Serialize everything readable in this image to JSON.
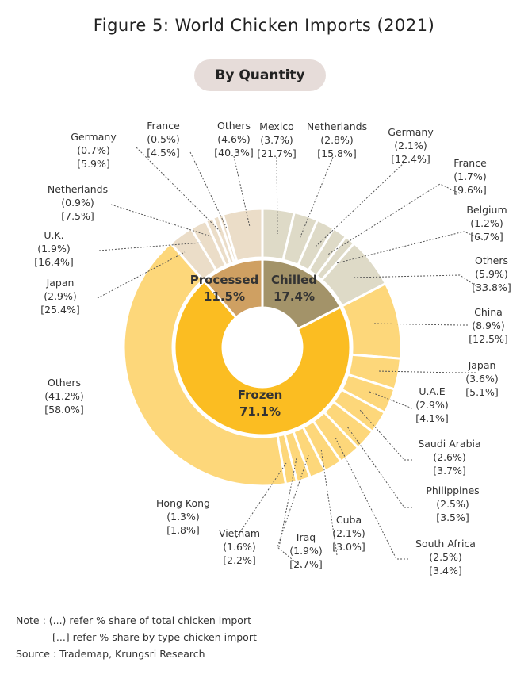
{
  "title": "Figure 5: World Chicken Imports (2021)",
  "subtitle": "By Quantity",
  "notes": {
    "line1": "Note :  (...) refer % share of total chicken import",
    "line2": "[...] refer % share by type chicken import",
    "source": "Source : Trademap, Krungsri Research"
  },
  "colors": {
    "chilled_inner": "#a39369",
    "processed_inner": "#cfa062",
    "frozen_inner": "#fbbd22",
    "chilled_outer": "#dedac7",
    "processed_outer": "#ebddc8",
    "frozen_outer": "#fdd77a"
  },
  "chart_data": {
    "type": "pie",
    "variant": "nested-donut",
    "inner": [
      {
        "name": "Chilled",
        "value": 17.4,
        "label": "17.4%"
      },
      {
        "name": "Frozen",
        "value": 71.1,
        "label": "71.1%"
      },
      {
        "name": "Processed",
        "value": 11.5,
        "label": "11.5%"
      }
    ],
    "outer": [
      {
        "group": "Chilled",
        "name": "Mexico",
        "total": 3.7,
        "by_type": 21.7,
        "lines": [
          "Mexico",
          "(3.7%)",
          "[21.7%]"
        ]
      },
      {
        "group": "Chilled",
        "name": "Netherlands",
        "total": 2.8,
        "by_type": 15.8,
        "lines": [
          "Netherlands",
          "(2.8%)",
          "[15.8%]"
        ]
      },
      {
        "group": "Chilled",
        "name": "Germany",
        "total": 2.1,
        "by_type": 12.4,
        "lines": [
          "Germany",
          "(2.1%)",
          "[12.4%]"
        ]
      },
      {
        "group": "Chilled",
        "name": "France",
        "total": 1.7,
        "by_type": 9.6,
        "lines": [
          "France",
          "(1.7%)",
          "[9.6%]"
        ]
      },
      {
        "group": "Chilled",
        "name": "Belgium",
        "total": 1.2,
        "by_type": 6.7,
        "lines": [
          "Belgium",
          "(1.2%)",
          "[6.7%]"
        ]
      },
      {
        "group": "Chilled",
        "name": "Others",
        "total": 5.9,
        "by_type": 33.8,
        "lines": [
          "Others",
          "(5.9%)",
          "[33.8%]"
        ]
      },
      {
        "group": "Frozen",
        "name": "China",
        "total": 8.9,
        "by_type": 12.5,
        "lines": [
          "China",
          "(8.9%)",
          "[12.5%]"
        ]
      },
      {
        "group": "Frozen",
        "name": "Japan",
        "total": 3.6,
        "by_type": 5.1,
        "lines": [
          "Japan",
          "(3.6%)",
          "[5.1%]"
        ]
      },
      {
        "group": "Frozen",
        "name": "U.A.E",
        "total": 2.9,
        "by_type": 4.1,
        "lines": [
          "U.A.E",
          "(2.9%)",
          "[4.1%]"
        ]
      },
      {
        "group": "Frozen",
        "name": "Saudi Arabia",
        "total": 2.6,
        "by_type": 3.7,
        "lines": [
          "Saudi Arabia",
          "(2.6%)",
          "[3.7%]"
        ]
      },
      {
        "group": "Frozen",
        "name": "Philippines",
        "total": 2.5,
        "by_type": 3.5,
        "lines": [
          "Philippines",
          "(2.5%)",
          "[3.5%]"
        ]
      },
      {
        "group": "Frozen",
        "name": "South Africa",
        "total": 2.5,
        "by_type": 3.4,
        "lines": [
          "South Africa",
          "(2.5%)",
          "[3.4%]"
        ]
      },
      {
        "group": "Frozen",
        "name": "Cuba",
        "total": 2.1,
        "by_type": 3.0,
        "lines": [
          "Cuba",
          "(2.1%)",
          "[3.0%]"
        ]
      },
      {
        "group": "Frozen",
        "name": "Iraq",
        "total": 1.9,
        "by_type": 2.7,
        "lines": [
          "Iraq",
          "(1.9%)",
          "[2.7%]"
        ]
      },
      {
        "group": "Frozen",
        "name": "Vietnam",
        "total": 1.6,
        "by_type": 2.2,
        "lines": [
          "Vietnam",
          "(1.6%)",
          "[2.2%]"
        ]
      },
      {
        "group": "Frozen",
        "name": "Hong Kong",
        "total": 1.3,
        "by_type": 1.8,
        "lines": [
          "Hong Kong",
          "(1.3%)",
          "[1.8%]"
        ]
      },
      {
        "group": "Frozen",
        "name": "Others",
        "total": 41.2,
        "by_type": 58.0,
        "lines": [
          "Others",
          "(41.2%)",
          "[58.0%]"
        ]
      },
      {
        "group": "Processed",
        "name": "Japan",
        "total": 2.9,
        "by_type": 25.4,
        "lines": [
          "Japan",
          "(2.9%)",
          "[25.4%]"
        ]
      },
      {
        "group": "Processed",
        "name": "U.K.",
        "total": 1.9,
        "by_type": 16.4,
        "lines": [
          "U.K.",
          "(1.9%)",
          "[16.4%]"
        ]
      },
      {
        "group": "Processed",
        "name": "Netherlands",
        "total": 0.9,
        "by_type": 7.5,
        "lines": [
          "Netherlands",
          "(0.9%)",
          "[7.5%]"
        ]
      },
      {
        "group": "Processed",
        "name": "Germany",
        "total": 0.7,
        "by_type": 5.9,
        "lines": [
          "Germany",
          "(0.7%)",
          "[5.9%]"
        ]
      },
      {
        "group": "Processed",
        "name": "France",
        "total": 0.5,
        "by_type": 4.5,
        "lines": [
          "France",
          "(0.5%)",
          "[4.5%]"
        ]
      },
      {
        "group": "Processed",
        "name": "Others",
        "total": 4.6,
        "by_type": 40.3,
        "lines": [
          "Others",
          "(4.6%)",
          "[40.3%]"
        ]
      }
    ]
  }
}
